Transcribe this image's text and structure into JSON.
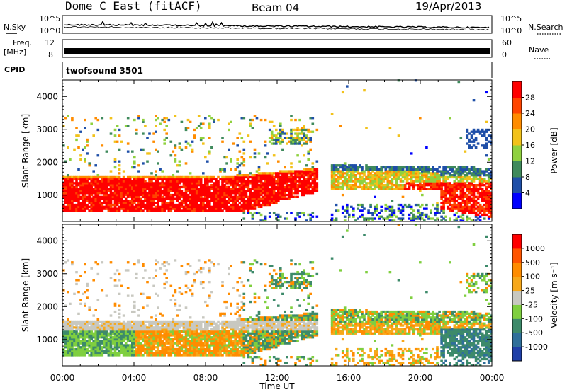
{
  "header": {
    "station": "Dome C East (fitACF)",
    "beam": "Beam 04",
    "date": "19/Apr/2013"
  },
  "info_panels": {
    "nsky_label": "N.Sky",
    "nsky_ticks": [
      "10^5",
      "10^0"
    ],
    "nsearch_label": "N.Search",
    "nsearch_ticks": [
      "10^5",
      "10^0"
    ],
    "freq_label": "Freq.",
    "freq_unit": "[MHz]",
    "freq_ticks": [
      "12",
      "8"
    ],
    "nave_label": "Nave",
    "nave_ticks": [
      "60",
      "0"
    ],
    "cpid_label": "CPID",
    "cpid_value": "twofsound 3501"
  },
  "colors": {
    "power_scale": [
      "#0000ff",
      "#1f4fa8",
      "#3f8a5c",
      "#8fd13f",
      "#f2c21a",
      "#ff8c00",
      "#ff4500",
      "#ff0000"
    ],
    "velocity_scale": [
      "#1f3fa8",
      "#2f6f9a",
      "#3d8a6a",
      "#7fcf3f",
      "#c8c8c0",
      "#f7a81a",
      "#ff8c00",
      "#ff5500",
      "#ff0000"
    ]
  },
  "chart_data": [
    {
      "type": "heatmap",
      "title": "Power",
      "xlabel": "Time UT",
      "ylabel": "Slant Range [km]",
      "x_ticks": [
        "00:00",
        "04:00",
        "08:00",
        "12:00",
        "16:00",
        "20:00",
        "00:00"
      ],
      "y_ticks": [
        "1000",
        "2000",
        "3000",
        "4000"
      ],
      "ylim": [
        200,
        4500
      ],
      "colorbar_label": "Power [dB]",
      "colorbar_ticks": [
        "4",
        "8",
        "12",
        "16",
        "20",
        "24",
        "28"
      ],
      "colorbar_range": [
        0,
        32
      ]
    },
    {
      "type": "heatmap",
      "title": "Velocity",
      "xlabel": "Time UT",
      "ylabel": "Slant Range [km]",
      "x_ticks": [
        "00:00",
        "04:00",
        "08:00",
        "12:00",
        "16:00",
        "20:00",
        "00:00"
      ],
      "y_ticks": [
        "1000",
        "2000",
        "3000",
        "4000"
      ],
      "ylim": [
        200,
        4500
      ],
      "colorbar_label": "Velocity [m s⁻¹]",
      "colorbar_ticks": [
        "1000",
        "500",
        "100",
        "25",
        "-25",
        "-100",
        "-500",
        "-1000"
      ]
    }
  ]
}
